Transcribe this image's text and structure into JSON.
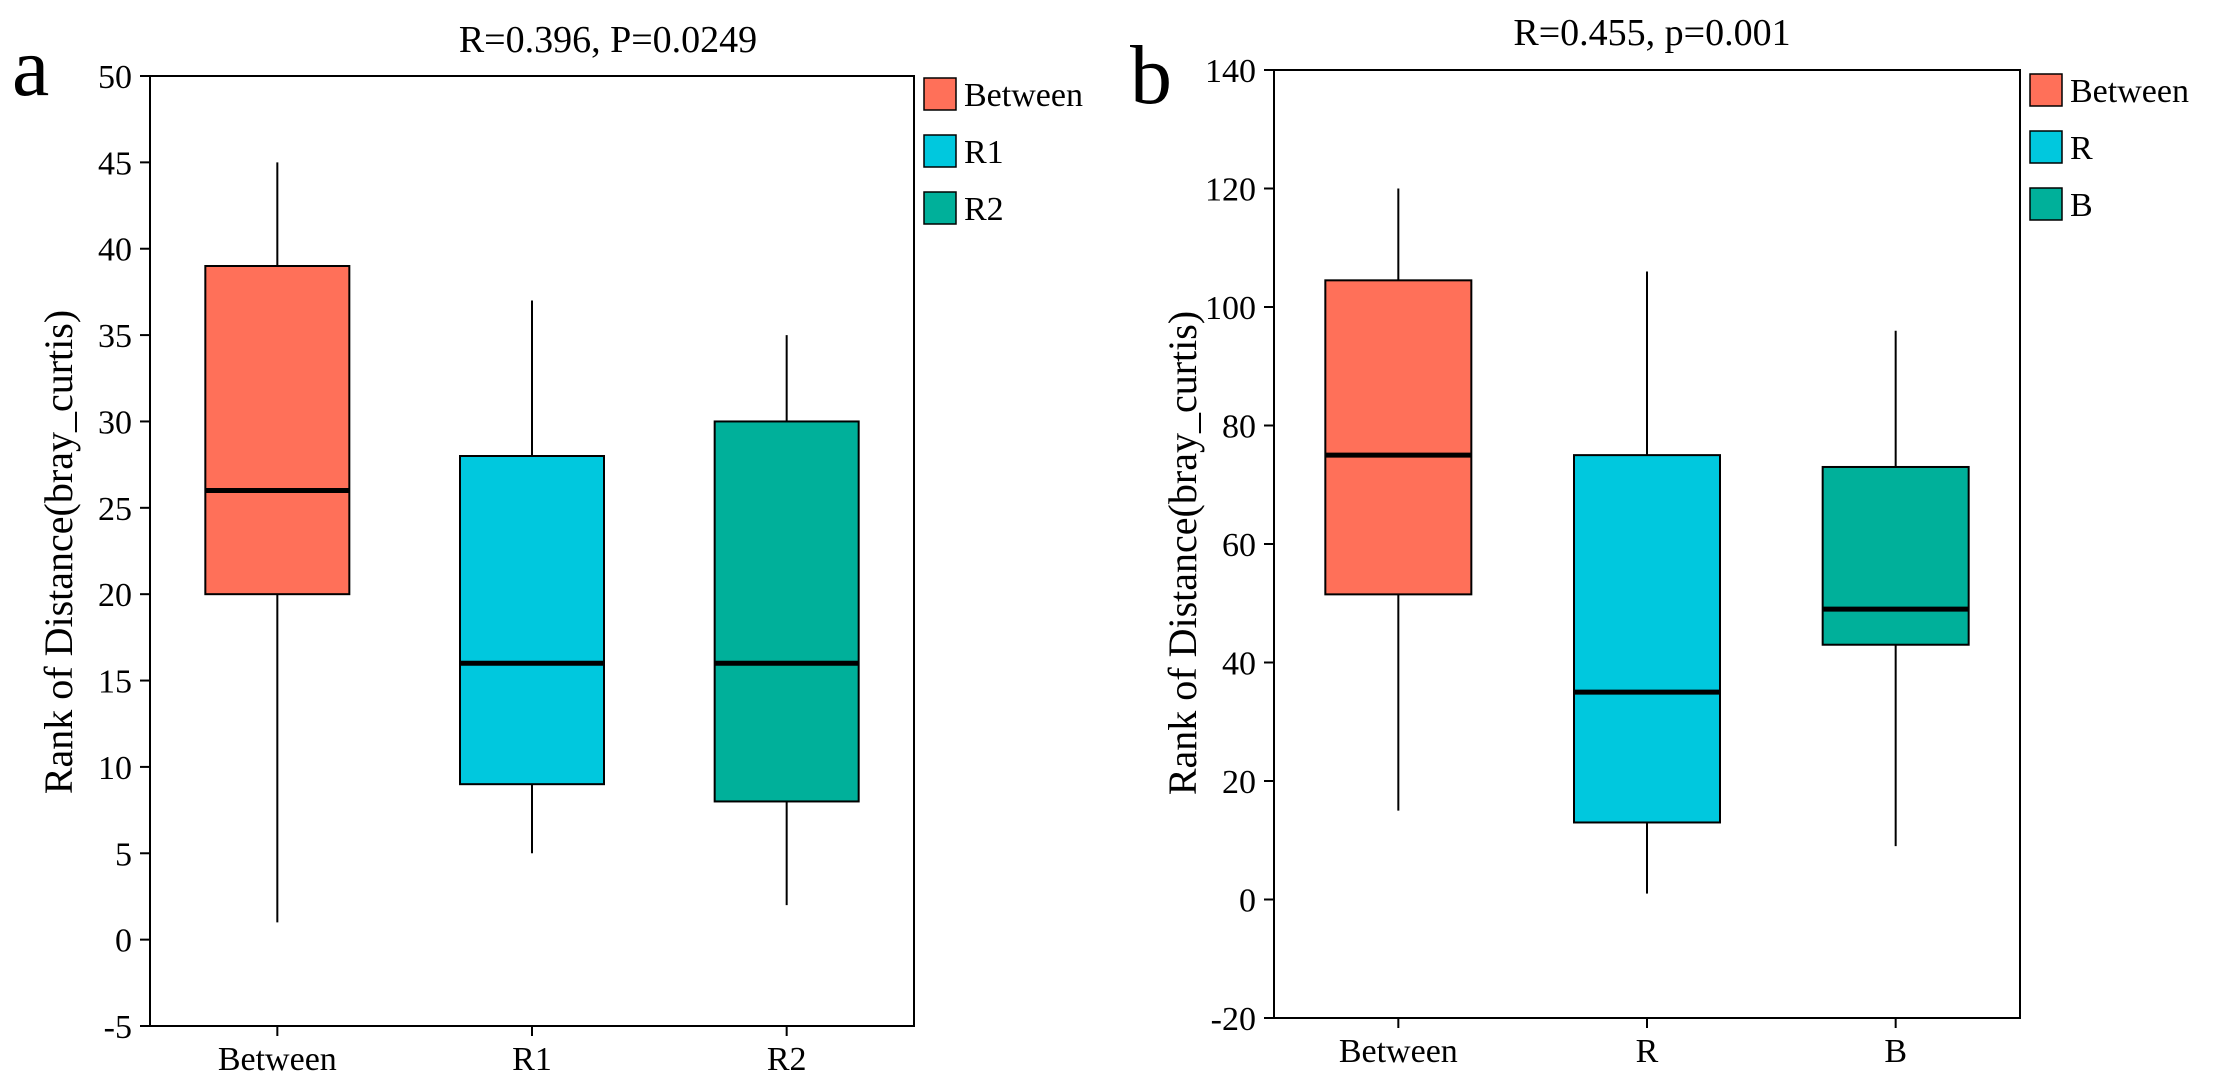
{
  "figure": {
    "panels": [
      {
        "letter": "a",
        "title": "R=0.396, P=0.0249"
      },
      {
        "letter": "b",
        "title": "R=0.455, p=0.001"
      }
    ]
  },
  "colors": {
    "Between": "#FF7059",
    "R1": "#00C8DE",
    "R2": "#00B09A",
    "R": "#00C8DE",
    "B": "#00B09A"
  },
  "chart_data": [
    {
      "type": "box",
      "title": "R=0.396, P=0.0249",
      "xlabel": "",
      "ylabel": "Rank of Distance(bray_curtis)",
      "ylim": [
        -5,
        50
      ],
      "yticks": [
        -5,
        0,
        5,
        10,
        15,
        20,
        25,
        30,
        35,
        40,
        45,
        50
      ],
      "categories": [
        "Between",
        "R1",
        "R2"
      ],
      "boxes": [
        {
          "name": "Between",
          "min": 1,
          "q1": 20,
          "median": 26,
          "q3": 39,
          "max": 45
        },
        {
          "name": "R1",
          "min": 5,
          "q1": 9,
          "median": 16,
          "q3": 28,
          "max": 37
        },
        {
          "name": "R2",
          "min": 2,
          "q1": 8,
          "median": 16,
          "q3": 30,
          "max": 35
        }
      ],
      "legend": [
        "Between",
        "R1",
        "R2"
      ],
      "legend_position": "right"
    },
    {
      "type": "box",
      "title": "R=0.455, p=0.001",
      "xlabel": "",
      "ylabel": "Rank of Distance(bray_curtis)",
      "ylim": [
        -20,
        140
      ],
      "yticks": [
        -20,
        0,
        20,
        40,
        60,
        80,
        100,
        120,
        140
      ],
      "categories": [
        "Between",
        "R",
        "B"
      ],
      "boxes": [
        {
          "name": "Between",
          "min": 15,
          "q1": 51.5,
          "median": 75,
          "q3": 104.5,
          "max": 120
        },
        {
          "name": "R",
          "min": 1,
          "q1": 13,
          "median": 35,
          "q3": 75,
          "max": 106
        },
        {
          "name": "B",
          "min": 9,
          "q1": 43,
          "median": 49,
          "q3": 73,
          "max": 96
        }
      ],
      "legend": [
        "Between",
        "R",
        "B"
      ],
      "legend_position": "right"
    }
  ]
}
